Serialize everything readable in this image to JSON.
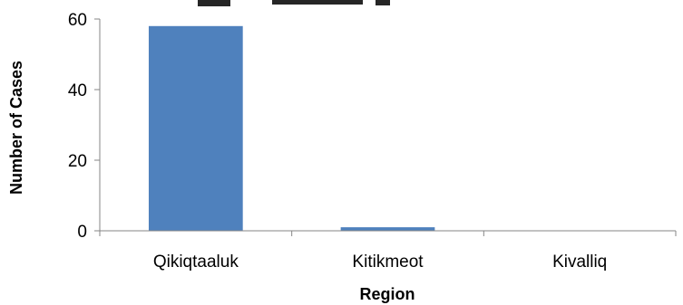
{
  "chart_data": {
    "type": "bar",
    "title": "",
    "xlabel": "Region",
    "ylabel": "Number of Cases",
    "categories": [
      "Qikiqtaaluk",
      "Kitikmeot",
      "Kivalliq"
    ],
    "values": [
      58,
      1,
      0
    ],
    "ylim": [
      0,
      60
    ],
    "yticks": [
      0,
      20,
      40,
      60
    ],
    "grid": false,
    "legend": "none",
    "bar_color": "#4f81bd",
    "axis_color": "#868686"
  }
}
